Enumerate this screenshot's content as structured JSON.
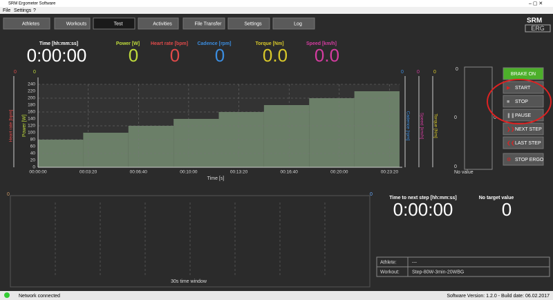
{
  "window": {
    "title": "SRM Ergometer Software",
    "menu": [
      "File",
      "Settings",
      "?"
    ]
  },
  "tabs": [
    "Athletes",
    "Workouts",
    "Test",
    "Activities",
    "File Transfer",
    "Settings",
    "Log"
  ],
  "logo": {
    "top": "SRM",
    "bottom": "ERG"
  },
  "metrics": [
    {
      "label": "Time [hh:mm:ss]",
      "value": "0:00:00"
    },
    {
      "label": "Power [W]",
      "value": "0"
    },
    {
      "label": "Heart rate [bpm]",
      "value": "0"
    },
    {
      "label": "Cadence [rpm]",
      "value": "0"
    },
    {
      "label": "Torque [Nm]",
      "value": "0.0"
    },
    {
      "label": "Speed [km/h]",
      "value": "0.0"
    }
  ],
  "axis_tops": {
    "heart_rate": "0",
    "power": "0",
    "cadence": "0",
    "speed": "0",
    "torque": "0"
  },
  "chart_data": {
    "type": "step",
    "x": [
      0,
      180,
      360,
      540,
      720,
      900,
      1080,
      1260
    ],
    "values": [
      80,
      100,
      120,
      140,
      160,
      180,
      200,
      220
    ],
    "color": "#6b7f68",
    "xlabel": "Time [s]",
    "ylabel": "Power [W]",
    "extra_axis_labels": [
      "Heart rate [bpm]",
      "Cadence [rpm]",
      "Speed [km/h]",
      "Torque [Nm]"
    ],
    "xlim": [
      0,
      1440
    ],
    "ylim": [
      0,
      240
    ],
    "yticks": [
      0,
      20,
      40,
      60,
      80,
      100,
      120,
      140,
      160,
      180,
      200,
      220,
      240
    ],
    "xticks": [
      {
        "value": 0,
        "label": "00:00:00"
      },
      {
        "value": 200,
        "label": "00:03:20"
      },
      {
        "value": 400,
        "label": "00:06:40"
      },
      {
        "value": 600,
        "label": "00:10:00"
      },
      {
        "value": 800,
        "label": "00:13:20"
      },
      {
        "value": 1000,
        "label": "00:16:40"
      },
      {
        "value": 1200,
        "label": "00:20:00"
      },
      {
        "value": 1400,
        "label": "00:23:20"
      }
    ],
    "grid": true
  },
  "gauge": {
    "top": "0",
    "mid": "0",
    "bottom": "0",
    "right": "0",
    "caption": "No value"
  },
  "buttons": [
    "BRAKE ON",
    "START",
    "STOP",
    "PAUSE",
    "NEXT STEP",
    "LAST STEP",
    "STOP ERGO"
  ],
  "live_chart": {
    "left": "0",
    "right": "0",
    "caption": "30s time window"
  },
  "next_step": {
    "label": "Time to next step [hh:mm:ss]",
    "value": "0:00:00"
  },
  "target": {
    "label": "No target value",
    "value": "0"
  },
  "info": [
    [
      "Athlete:",
      "---"
    ],
    [
      "Workout:",
      "Step-80W-3min-20WBG"
    ]
  ],
  "status": {
    "network": "Network connected",
    "version": "Software Version: 1.2.0 - Build date: 06.02.2017"
  }
}
